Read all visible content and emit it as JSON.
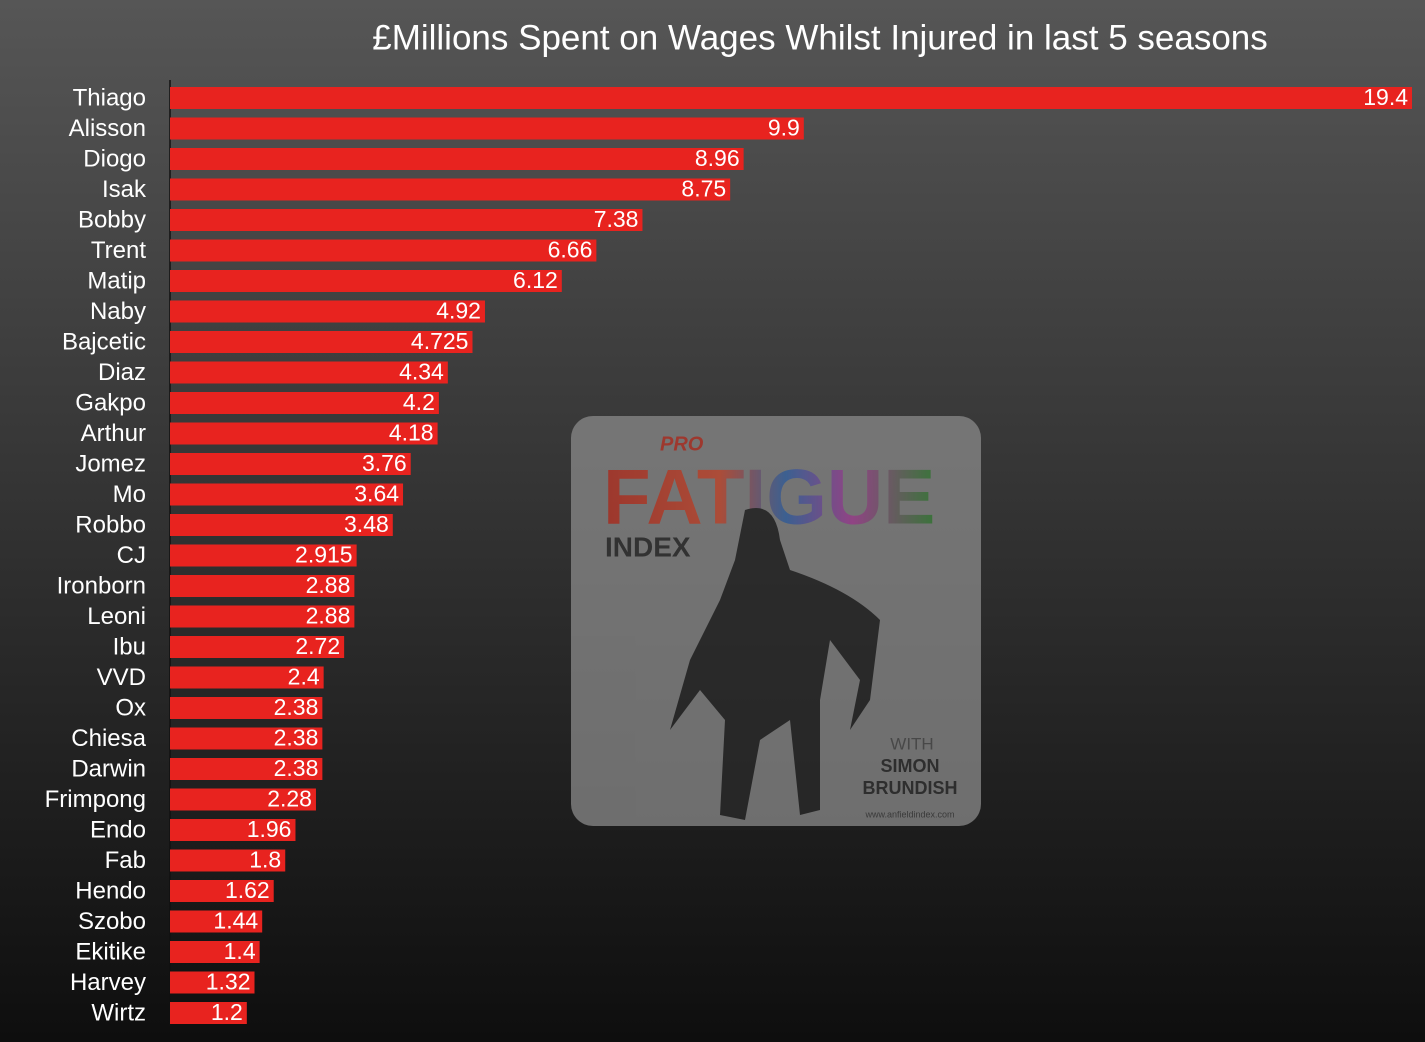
{
  "chart_data": {
    "type": "hbar",
    "title": "£Millions Spent on Wages Whilst Injured in last 5 seasons",
    "categories": [
      "Thiago",
      "Alisson",
      "Diogo",
      "Isak",
      "Bobby",
      "Trent",
      "Matip",
      "Naby",
      "Bajcetic",
      "Diaz",
      "Gakpo",
      "Arthur",
      "Jomez",
      "Mo",
      "Robbo",
      "CJ",
      "Ironborn",
      "Leoni",
      "Ibu",
      "VVD",
      "Ox",
      "Chiesa",
      "Darwin",
      "Frimpong",
      "Endo",
      "Fab",
      "Hendo",
      "Szobo",
      "Ekitike",
      "Harvey",
      "Wirtz"
    ],
    "values": [
      19.4,
      9.9,
      8.96,
      8.75,
      7.38,
      6.66,
      6.12,
      4.92,
      4.725,
      4.34,
      4.2,
      4.18,
      3.76,
      3.64,
      3.48,
      2.915,
      2.88,
      2.88,
      2.72,
      2.4,
      2.38,
      2.38,
      2.38,
      2.28,
      1.96,
      1.8,
      1.62,
      1.44,
      1.4,
      1.32,
      1.2
    ],
    "color": "#e8231f"
  },
  "watermark": {
    "brand": "PRO",
    "title": "FATIGUE",
    "subtitle": "INDEX",
    "with": "WITH",
    "name1": "SIMON",
    "name2": "BRUNDISH",
    "url": "www.anfieldindex.com"
  }
}
